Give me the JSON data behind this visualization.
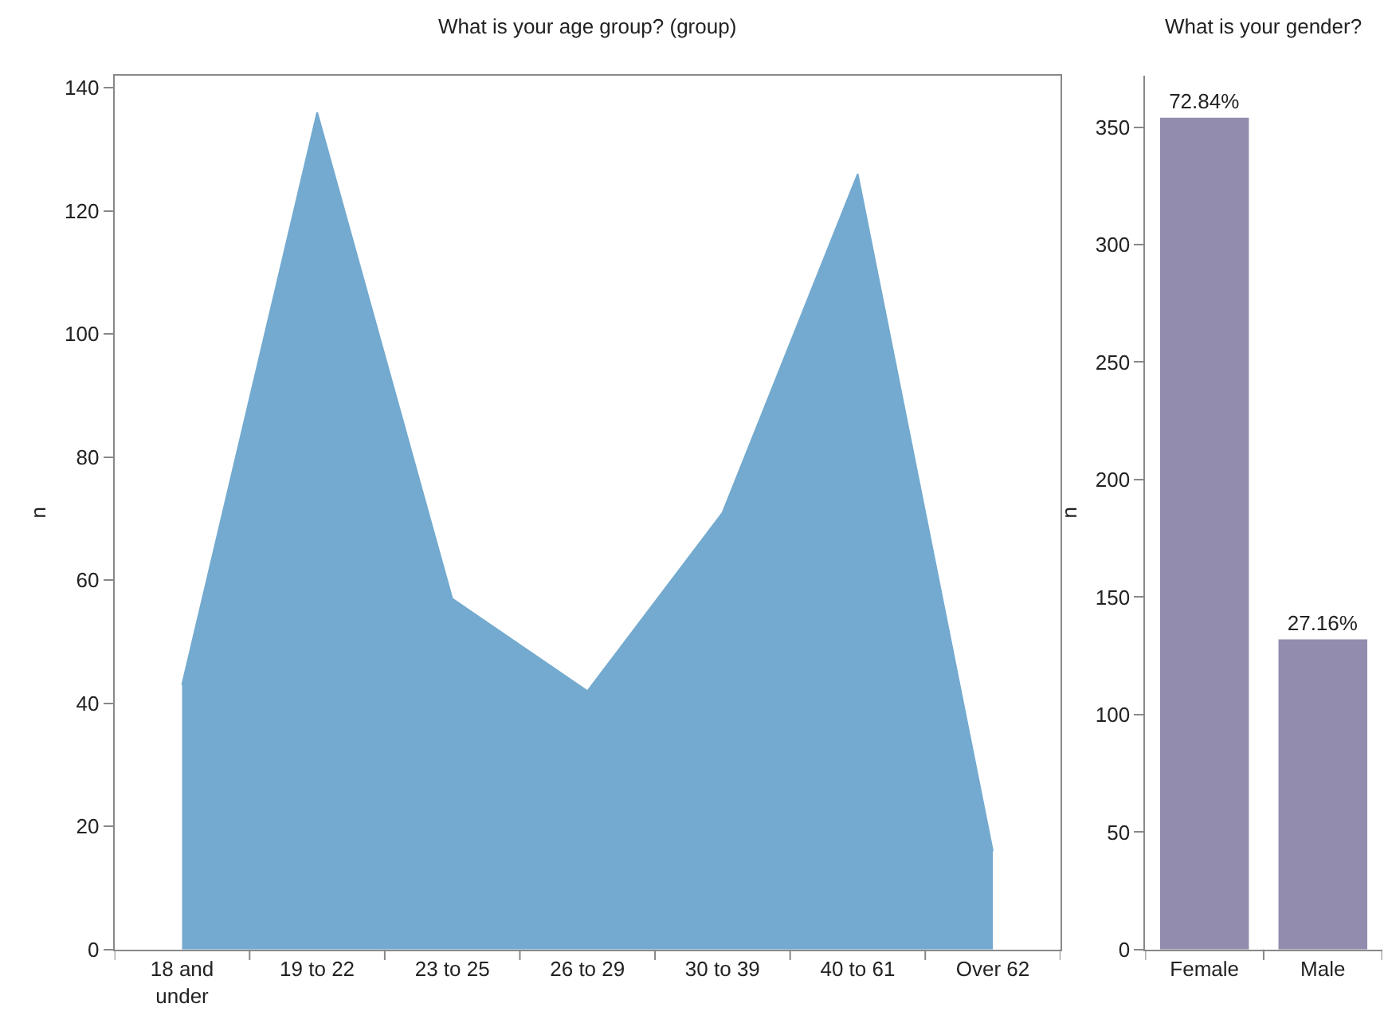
{
  "chart_data": [
    {
      "type": "area",
      "title": "What is your age group? (group)",
      "ylabel": "n",
      "categories": [
        "18 and under",
        "19 to 22",
        "23 to 25",
        "26 to 29",
        "30 to 39",
        "40 to 61",
        "Over 62"
      ],
      "series": [
        {
          "color": "#74aacf",
          "values": [
            43,
            136,
            57,
            42,
            71,
            126,
            16
          ]
        }
      ],
      "ylim": [
        0,
        142
      ],
      "yticks": [
        0,
        20,
        40,
        60,
        80,
        100,
        120,
        140
      ]
    },
    {
      "type": "bar",
      "title": "What is your gender?",
      "ylabel": "n",
      "categories": [
        "Female",
        "Male"
      ],
      "series": [
        {
          "color": "#928cae",
          "values": [
            354,
            132
          ]
        }
      ],
      "value_labels": [
        "72.84%",
        "27.16%"
      ],
      "ylim": [
        0,
        372
      ],
      "yticks": [
        0,
        50,
        100,
        150,
        200,
        250,
        300,
        350
      ]
    }
  ]
}
